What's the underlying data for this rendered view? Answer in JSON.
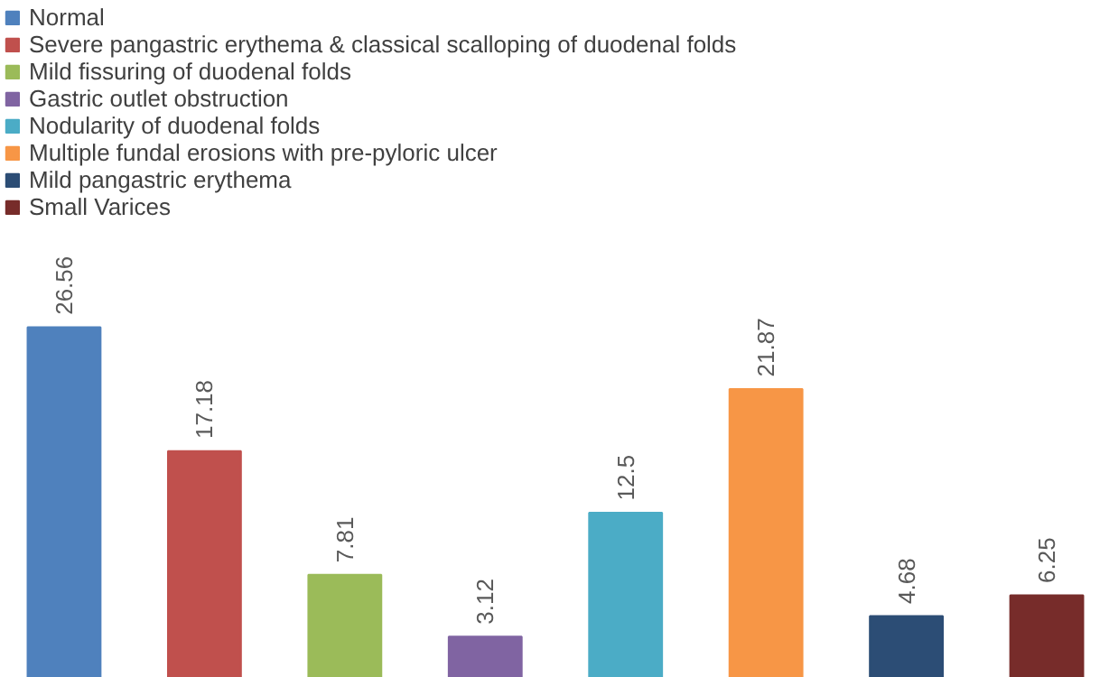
{
  "chart_data": {
    "type": "bar",
    "categories": [
      null,
      null,
      null,
      null,
      null,
      null,
      null,
      null
    ],
    "stacked": true,
    "series": [
      {
        "name": "Normal",
        "color": "#4f81bd",
        "values": [
          26.56,
          null,
          null,
          null,
          null,
          null,
          null,
          null
        ]
      },
      {
        "name": "Severe pangastric erythema & classical scalloping of duodenal folds",
        "color": "#c0504d",
        "values": [
          null,
          17.18,
          null,
          null,
          null,
          null,
          null,
          null
        ]
      },
      {
        "name": "Mild fissuring of duodenal folds",
        "color": "#9bbb59",
        "values": [
          null,
          null,
          7.81,
          null,
          null,
          null,
          null,
          null
        ]
      },
      {
        "name": "Gastric outlet obstruction",
        "color": "#8064a2",
        "values": [
          null,
          null,
          null,
          3.12,
          null,
          null,
          null,
          null
        ]
      },
      {
        "name": "Nodularity of duodenal folds",
        "color": "#4bacc6",
        "values": [
          null,
          null,
          null,
          null,
          12.5,
          null,
          null,
          null
        ]
      },
      {
        "name": "Multiple fundal erosions with pre-pyloric ulcer",
        "color": "#f79646",
        "values": [
          null,
          null,
          null,
          null,
          null,
          21.87,
          null,
          null
        ]
      },
      {
        "name": "Mild pangastric erythema",
        "color": "#2c4d75",
        "values": [
          null,
          null,
          null,
          null,
          null,
          null,
          4.68,
          null
        ]
      },
      {
        "name": "Small Varices",
        "color": "#772c2a",
        "values": [
          null,
          null,
          null,
          null,
          null,
          null,
          null,
          6.25
        ]
      }
    ],
    "data_labels": true,
    "legend": "top left",
    "grid": false
  }
}
